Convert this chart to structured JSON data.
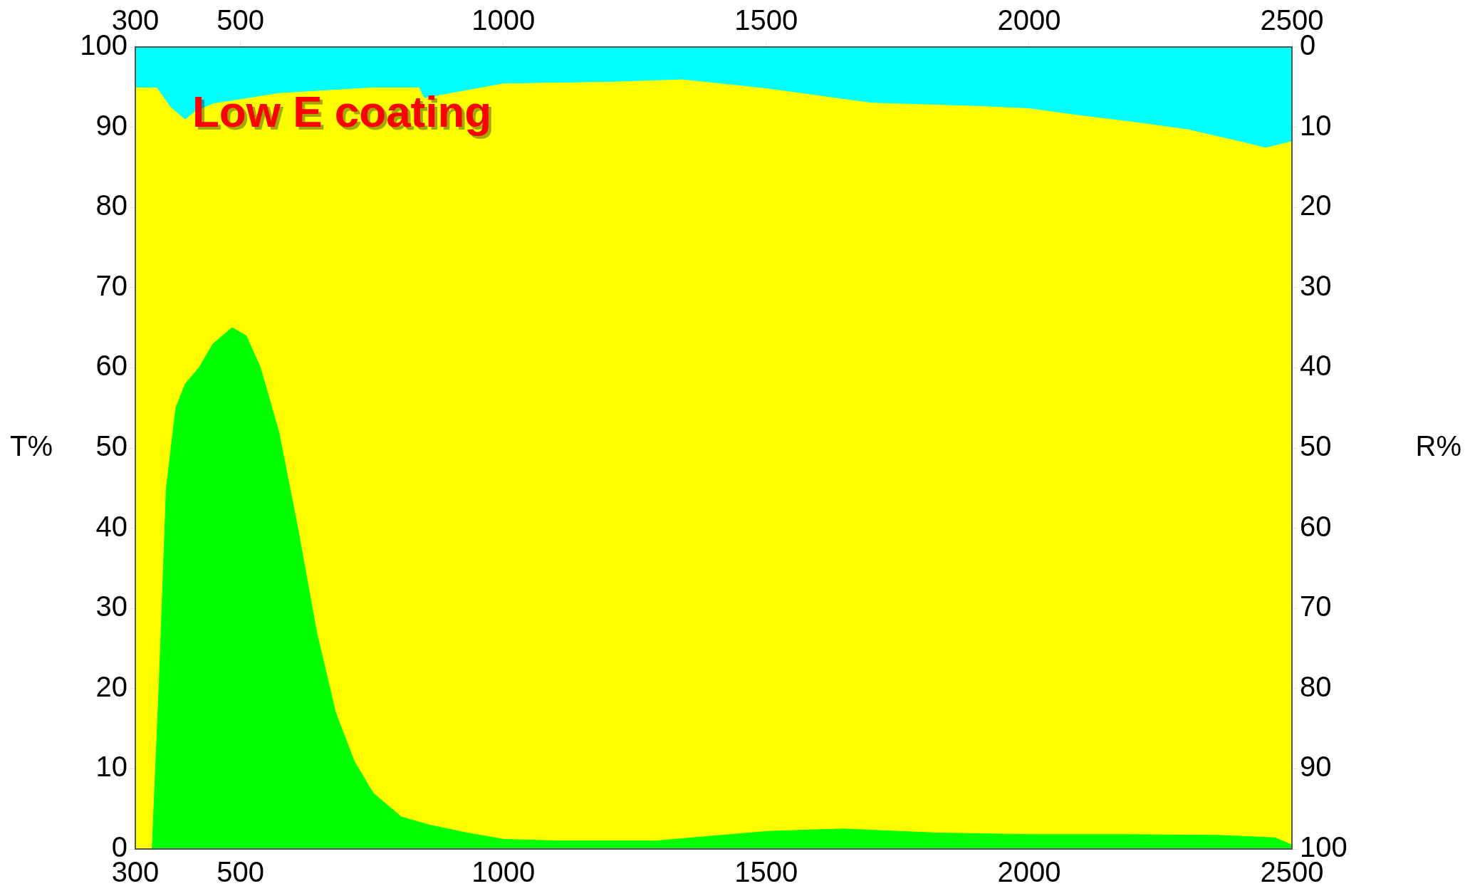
{
  "chart_data": {
    "type": "area",
    "annotations": [
      "Low E coating"
    ],
    "ylabel": "T%",
    "y2label": "R%",
    "xlim": [
      300,
      2500
    ],
    "xticks": [
      300,
      500,
      1000,
      1500,
      2000,
      2500
    ],
    "x2lim": [
      300,
      2500
    ],
    "x2ticks": [
      300,
      500,
      1000,
      1500,
      2000,
      2500
    ],
    "ylim": [
      0,
      100
    ],
    "yticks": [
      0,
      10,
      20,
      30,
      40,
      50,
      60,
      70,
      80,
      90,
      100
    ],
    "y2lim": [
      100,
      0
    ],
    "y2ticks": [
      0,
      10,
      20,
      30,
      40,
      50,
      60,
      70,
      80,
      90,
      100
    ],
    "grid": false,
    "legend": false,
    "series": [
      {
        "color": "#00ff00",
        "x": [
          300,
          332,
          345,
          359,
          377,
          395,
          421,
          448,
          484,
          511,
          538,
          573,
          609,
          645,
          681,
          716,
          752,
          806,
          859,
          931,
          1002,
          1110,
          1288,
          1378,
          1503,
          1646,
          1824,
          2003,
          2182,
          2361,
          2468,
          2500
        ],
        "values": [
          0,
          0,
          20,
          45,
          55,
          58,
          60,
          63,
          65,
          64,
          60,
          52,
          40,
          27,
          17,
          11,
          7,
          4,
          3,
          2,
          1.2,
          1,
          1,
          1.5,
          2.2,
          2.5,
          2,
          1.8,
          1.8,
          1.7,
          1.4,
          0.5
        ]
      },
      {
        "color": "#00ffff",
        "axis": "y2",
        "x": [
          300,
          341,
          368,
          395,
          413,
          448,
          573,
          752,
          840,
          850,
          1000,
          1200,
          1340,
          1500,
          1700,
          1800,
          1900,
          2000,
          2100,
          2200,
          2300,
          2400,
          2450,
          2500
        ],
        "values": [
          5,
          5,
          7.5,
          9,
          8,
          7,
          5.7,
          5,
          5,
          6.3,
          4.5,
          4.3,
          4,
          5.1,
          6.9,
          7.1,
          7.3,
          7.6,
          8.5,
          9.3,
          10.2,
          11.7,
          12.5,
          11.7
        ]
      }
    ]
  }
}
